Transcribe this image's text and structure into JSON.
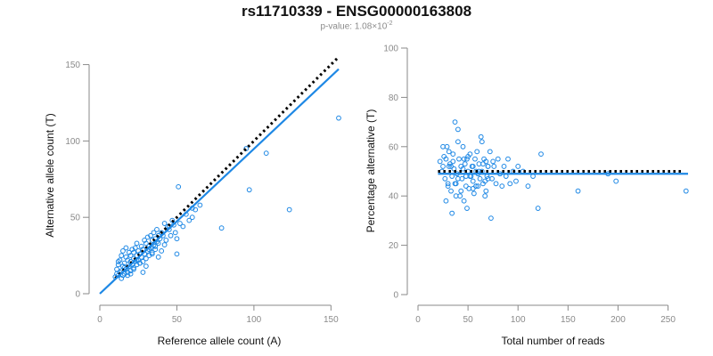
{
  "header": {
    "title": "rs11710339 - ENSG00000163808",
    "pvalue_prefix": "p-value: ",
    "pvalue_mantissa": "1.08",
    "pvalue_times": "×10",
    "pvalue_exponent": "-2"
  },
  "colors": {
    "series": "#1e88e5",
    "axis": "#8a8a8a",
    "reference": "#000000"
  },
  "chart_data": [
    {
      "type": "scatter",
      "title": "",
      "xlabel": "Reference allele count (A)",
      "ylabel": "Alternative allele count (T)",
      "xlim": [
        0,
        155
      ],
      "ylim": [
        0,
        155
      ],
      "xticks": [
        0,
        50,
        100,
        150
      ],
      "yticks": [
        0,
        50,
        100,
        150
      ],
      "reference_line": {
        "style": "dotted",
        "from": [
          10,
          10
        ],
        "to": [
          155,
          155
        ]
      },
      "fit_line": {
        "style": "solid",
        "from": [
          0,
          0
        ],
        "to": [
          155,
          147
        ]
      },
      "x": [
        10,
        11,
        11,
        12,
        12,
        13,
        13,
        14,
        14,
        15,
        15,
        15,
        16,
        16,
        17,
        17,
        17,
        18,
        18,
        19,
        19,
        20,
        20,
        20,
        21,
        21,
        22,
        22,
        22,
        23,
        23,
        24,
        24,
        24,
        25,
        25,
        26,
        26,
        27,
        27,
        28,
        28,
        29,
        29,
        30,
        30,
        31,
        31,
        32,
        32,
        33,
        33,
        34,
        34,
        35,
        35,
        36,
        36,
        37,
        37,
        38,
        38,
        39,
        40,
        41,
        42,
        43,
        44,
        45,
        46,
        47,
        48,
        49,
        50,
        52,
        54,
        56,
        58,
        60,
        62,
        65,
        14,
        18,
        22,
        26,
        30,
        34,
        38,
        42,
        12,
        16,
        20,
        24,
        28,
        32,
        36,
        40,
        45,
        50,
        51,
        60,
        79,
        95,
        97,
        108,
        123,
        155
      ],
      "y": [
        11,
        13,
        16,
        12,
        19,
        14,
        22,
        15,
        25,
        12,
        18,
        28,
        13,
        20,
        16,
        24,
        30,
        14,
        22,
        18,
        27,
        15,
        21,
        25,
        19,
        29,
        17,
        23,
        27,
        21,
        30,
        19,
        25,
        33,
        22,
        28,
        20,
        26,
        24,
        31,
        21,
        29,
        26,
        35,
        23,
        33,
        28,
        37,
        25,
        31,
        30,
        38,
        27,
        35,
        32,
        40,
        29,
        36,
        34,
        42,
        33,
        38,
        36,
        40,
        38,
        46,
        35,
        44,
        42,
        38,
        48,
        45,
        40,
        36,
        46,
        44,
        52,
        48,
        50,
        55,
        58,
        10,
        12,
        16,
        20,
        18,
        26,
        24,
        32,
        21,
        17,
        13,
        22,
        14,
        29,
        31,
        28,
        44,
        26,
        70,
        56,
        43,
        95,
        68,
        92,
        55,
        115
      ]
    },
    {
      "type": "scatter",
      "title": "",
      "xlabel": "Total number of reads",
      "ylabel": "Percentage alternative (T)",
      "xlim": [
        0,
        270
      ],
      "ylim": [
        0,
        100
      ],
      "xticks": [
        0,
        50,
        100,
        150,
        200,
        250
      ],
      "yticks": [
        0,
        20,
        40,
        60,
        80,
        100
      ],
      "reference_line": {
        "style": "dotted",
        "y": 50,
        "from_x": 20,
        "to_x": 265
      },
      "fit_line": {
        "style": "solid",
        "y": 49,
        "from_x": 20,
        "to_x": 270
      },
      "x": [
        22,
        24,
        25,
        26,
        27,
        28,
        29,
        30,
        31,
        32,
        33,
        34,
        35,
        36,
        37,
        38,
        39,
        40,
        41,
        42,
        43,
        44,
        45,
        46,
        47,
        48,
        49,
        50,
        51,
        52,
        53,
        54,
        55,
        56,
        57,
        58,
        59,
        60,
        61,
        62,
        63,
        64,
        65,
        66,
        67,
        68,
        69,
        70,
        72,
        74,
        76,
        78,
        80,
        82,
        84,
        86,
        88,
        90,
        92,
        95,
        98,
        100,
        105,
        110,
        115,
        120,
        123,
        25,
        28,
        31,
        34,
        37,
        40,
        43,
        46,
        49,
        52,
        55,
        58,
        61,
        64,
        67,
        70,
        73,
        30,
        35,
        40,
        45,
        50,
        55,
        60,
        65,
        70,
        75,
        33,
        38,
        48,
        58,
        68,
        160,
        190,
        198,
        268
      ],
      "y": [
        54,
        50,
        52,
        56,
        47,
        55,
        60,
        44,
        52,
        53,
        42,
        48,
        57,
        51,
        70,
        45,
        49,
        62,
        55,
        40,
        52,
        47,
        60,
        38,
        53,
        44,
        55,
        50,
        43,
        57,
        48,
        52,
        46,
        41,
        55,
        50,
        58,
        44,
        53,
        47,
        64,
        50,
        45,
        55,
        40,
        54,
        48,
        52,
        58,
        47,
        52,
        45,
        55,
        49,
        44,
        52,
        48,
        55,
        45,
        50,
        46,
        52,
        50,
        44,
        48,
        35,
        57,
        60,
        38,
        58,
        33,
        45,
        67,
        42,
        55,
        35,
        48,
        52,
        44,
        50,
        62,
        46,
        52,
        31,
        45,
        54,
        47,
        51,
        56,
        43,
        49,
        53,
        47,
        54,
        52,
        40,
        48,
        44,
        42,
        42,
        49,
        46,
        42
      ]
    }
  ]
}
